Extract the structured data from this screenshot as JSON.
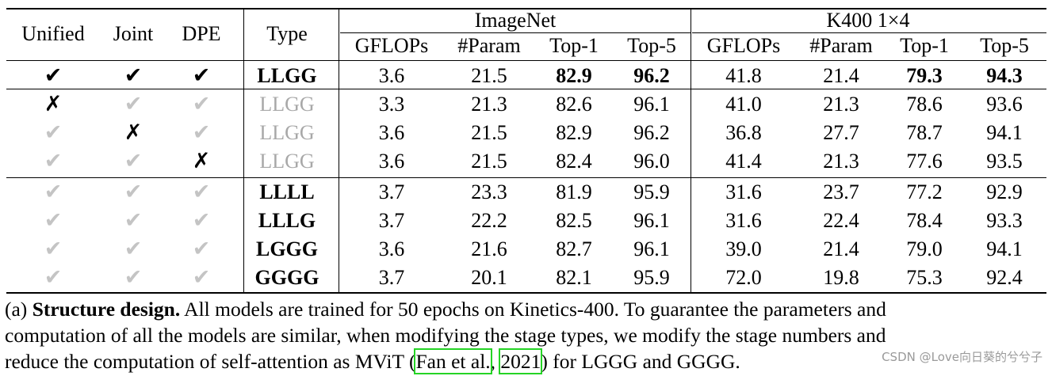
{
  "table": {
    "headers": {
      "unified": "Unified",
      "joint": "Joint",
      "dpe": "DPE",
      "type": "Type",
      "group1": "ImageNet",
      "group2": "K400 1×4",
      "sub": [
        "GFLOPs",
        "#Param",
        "Top-1",
        "Top-5"
      ]
    },
    "rows": [
      {
        "marks": [
          "check",
          "check",
          "check"
        ],
        "marks_dim": [
          false,
          false,
          false
        ],
        "type": "LLGG",
        "type_style": "bold",
        "imagenet": [
          "3.6",
          "21.5",
          "82.9",
          "96.2"
        ],
        "k400": [
          "41.8",
          "21.4",
          "79.3",
          "94.3"
        ],
        "bold_tops": true
      },
      {
        "marks": [
          "cross",
          "check",
          "check"
        ],
        "marks_dim": [
          false,
          true,
          true
        ],
        "type": "LLGG",
        "type_style": "grey",
        "imagenet": [
          "3.3",
          "21.3",
          "82.6",
          "96.1"
        ],
        "k400": [
          "41.0",
          "21.3",
          "78.6",
          "93.6"
        ],
        "bold_tops": false
      },
      {
        "marks": [
          "check",
          "cross",
          "check"
        ],
        "marks_dim": [
          true,
          false,
          true
        ],
        "type": "LLGG",
        "type_style": "grey",
        "imagenet": [
          "3.6",
          "21.5",
          "82.9",
          "96.2"
        ],
        "k400": [
          "36.8",
          "27.7",
          "78.7",
          "94.1"
        ],
        "bold_tops": false
      },
      {
        "marks": [
          "check",
          "check",
          "cross"
        ],
        "marks_dim": [
          true,
          true,
          false
        ],
        "type": "LLGG",
        "type_style": "grey",
        "imagenet": [
          "3.6",
          "21.5",
          "82.4",
          "96.0"
        ],
        "k400": [
          "41.4",
          "21.3",
          "77.6",
          "93.5"
        ],
        "bold_tops": false
      },
      {
        "marks": [
          "check",
          "check",
          "check"
        ],
        "marks_dim": [
          true,
          true,
          true
        ],
        "type": "LLLL",
        "type_style": "bold",
        "imagenet": [
          "3.7",
          "23.3",
          "81.9",
          "95.9"
        ],
        "k400": [
          "31.6",
          "23.7",
          "77.2",
          "92.9"
        ],
        "bold_tops": false
      },
      {
        "marks": [
          "check",
          "check",
          "check"
        ],
        "marks_dim": [
          true,
          true,
          true
        ],
        "type": "LLLG",
        "type_style": "bold",
        "imagenet": [
          "3.7",
          "22.2",
          "82.5",
          "96.1"
        ],
        "k400": [
          "31.6",
          "22.4",
          "78.4",
          "93.3"
        ],
        "bold_tops": false
      },
      {
        "marks": [
          "check",
          "check",
          "check"
        ],
        "marks_dim": [
          true,
          true,
          true
        ],
        "type": "LGGG",
        "type_style": "bold",
        "imagenet": [
          "3.6",
          "21.6",
          "82.7",
          "96.1"
        ],
        "k400": [
          "39.0",
          "21.4",
          "79.0",
          "94.1"
        ],
        "bold_tops": false
      },
      {
        "marks": [
          "check",
          "check",
          "check"
        ],
        "marks_dim": [
          true,
          true,
          true
        ],
        "type": "GGGG",
        "type_style": "bold",
        "imagenet": [
          "3.7",
          "20.1",
          "82.1",
          "95.9"
        ],
        "k400": [
          "72.0",
          "19.8",
          "75.3",
          "92.4"
        ],
        "bold_tops": false
      }
    ]
  },
  "caption": {
    "prefix": "(a) ",
    "title": "Structure design.",
    "line1_rest": " All models are trained for 50 epochs on Kinetics-400. To guarantee the parameters and",
    "line2": "computation of all the models are similar, when modifying the stage types, we modify the stage numbers and",
    "line3_a": "reduce the computation of self-attention as MViT (",
    "cite_author": "Fan et al.",
    "line3_b": ", ",
    "cite_year": "2021",
    "line3_c": ") for LGGG and GGGG."
  },
  "watermark": "CSDN @Love向日葵的兮兮子"
}
